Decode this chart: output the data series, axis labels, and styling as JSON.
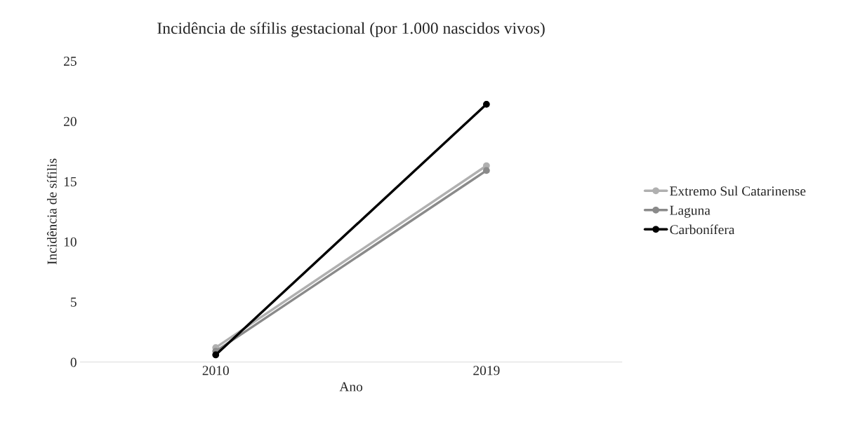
{
  "chart_data": {
    "type": "line",
    "title": "Incidência de sífilis gestacional (por 1.000 nascidos vivos)",
    "xlabel": "Ano",
    "ylabel": "Incidência de sífilis",
    "categories": [
      "2010",
      "2019"
    ],
    "series": [
      {
        "name": "Extremo Sul Catarinense",
        "color": "#b0b0b0",
        "values": [
          1.2,
          16.3
        ]
      },
      {
        "name": "Laguna",
        "color": "#8a8a8a",
        "values": [
          0.9,
          15.9
        ]
      },
      {
        "name": "Carbonífera",
        "color": "#000000",
        "values": [
          0.6,
          21.4
        ]
      }
    ],
    "ylim": [
      0,
      25
    ],
    "yticks": [
      0,
      5,
      10,
      15,
      20,
      25
    ],
    "grid": false,
    "legend": "right",
    "marker": "circle",
    "line_style": "solid"
  }
}
